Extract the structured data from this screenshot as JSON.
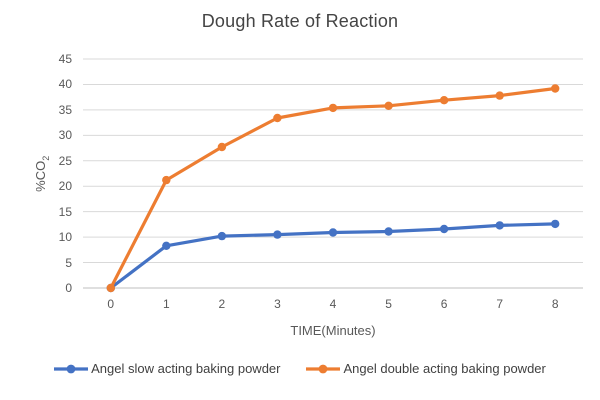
{
  "chart_data": {
    "type": "line",
    "title": "Dough Rate of Reaction",
    "xlabel": "TIME(Minutes)",
    "ylabel": "%CO2",
    "ylabel_main": "%CO",
    "ylabel_sub": "2",
    "x": [
      0,
      1,
      2,
      3,
      4,
      5,
      6,
      7,
      8
    ],
    "y_ticks": [
      0,
      5,
      10,
      15,
      20,
      25,
      30,
      35,
      40,
      45
    ],
    "ylim": [
      0,
      45
    ],
    "grid": true,
    "legend_position": "bottom",
    "series": [
      {
        "name": "Angel slow acting baking powder",
        "color": "#4472C4",
        "values": [
          0,
          8.3,
          10.2,
          10.5,
          10.9,
          11.1,
          11.6,
          12.3,
          12.6
        ]
      },
      {
        "name": "Angel double acting baking powder",
        "color": "#ED7D31",
        "values": [
          0,
          21.2,
          27.7,
          33.4,
          35.4,
          35.8,
          36.9,
          37.8,
          39.2
        ]
      }
    ]
  },
  "colors": {
    "grid": "#D9D9D9",
    "axis": "#BFBFBF",
    "tick_text": "#595959",
    "title_text": "#444444"
  }
}
